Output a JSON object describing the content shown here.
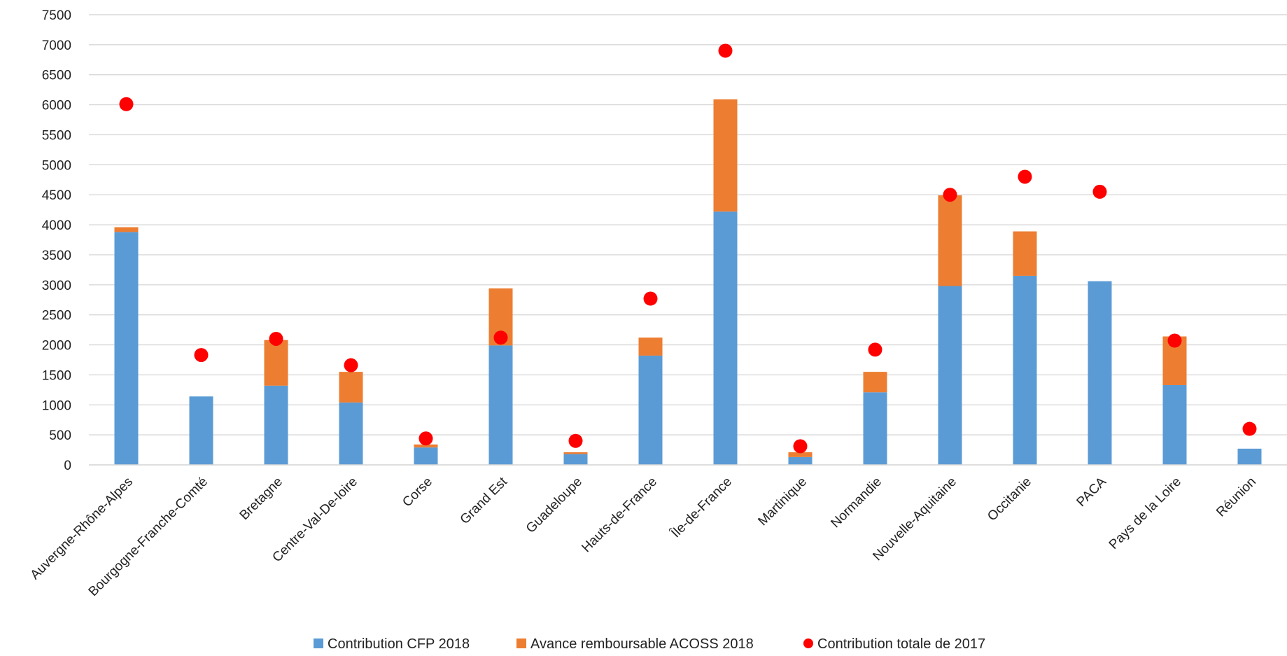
{
  "chart_data": {
    "type": "bar",
    "stacked": true,
    "categories": [
      "Auvergne-Rhône-Alpes",
      "Bourgogne-Franche-Comté",
      "Bretagne",
      "Centre-Val-De-loire",
      "Corse",
      "Grand Est",
      "Guadeloupe",
      "Hauts-de-France",
      "Île-de-France",
      "Martinique",
      "Normandie",
      "Nouvelle-Aquitaine",
      "Occitanie",
      "PACA",
      "Pays de la Loire",
      "Réunion"
    ],
    "series": [
      {
        "name": "Contribution CFP 2018",
        "type": "bar",
        "color": "#5b9bd5",
        "values": [
          3880,
          1140,
          1320,
          1040,
          290,
          1990,
          180,
          1820,
          4220,
          130,
          1210,
          2980,
          3150,
          3060,
          1330,
          270
        ]
      },
      {
        "name": "Avance remboursable ACOSS 2018",
        "type": "bar",
        "color": "#ed7d31",
        "values": [
          80,
          0,
          760,
          510,
          50,
          950,
          30,
          300,
          1870,
          80,
          340,
          1510,
          740,
          0,
          810,
          0
        ]
      },
      {
        "name": "Contribution totale de 2017",
        "type": "scatter",
        "color": "#ff0000",
        "values": [
          6010,
          1830,
          2100,
          1660,
          440,
          2120,
          400,
          2770,
          6900,
          310,
          1920,
          4500,
          4800,
          4550,
          2070,
          600
        ]
      }
    ],
    "yticks": [
      "0",
      "500",
      "1000",
      "1500",
      "2000",
      "2500",
      "3000",
      "3500",
      "4000",
      "4500",
      "5000",
      "5500",
      "6000",
      "6500",
      "7000",
      "7500"
    ],
    "ylim": [
      0,
      7500
    ],
    "grid": true,
    "legend_position": "bottom",
    "title": "",
    "xlabel": "",
    "ylabel": ""
  }
}
